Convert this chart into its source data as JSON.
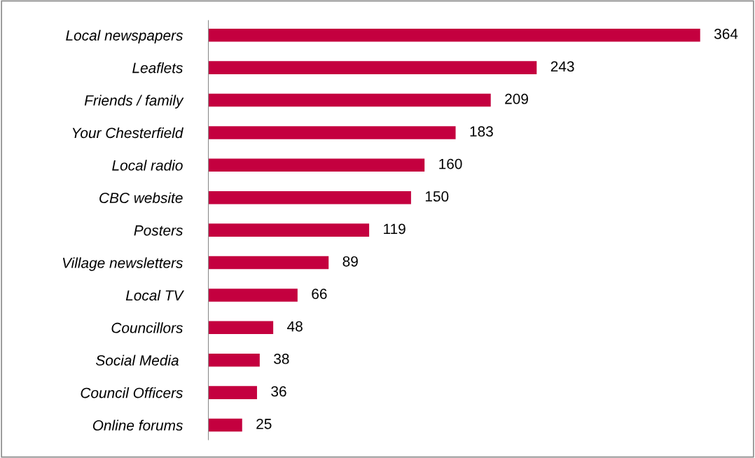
{
  "chart_data": {
    "type": "bar",
    "orientation": "horizontal",
    "categories": [
      "Local newspapers",
      "Leaflets",
      "Friends / family",
      "Your Chesterfield",
      "Local radio",
      "CBC website",
      "Posters",
      "Village newsletters",
      "Local TV",
      "Councillors",
      "Social Media ",
      "Council Officers",
      "Online forums"
    ],
    "values": [
      364,
      243,
      209,
      183,
      160,
      150,
      119,
      89,
      66,
      48,
      38,
      36,
      25
    ],
    "color": "#c4003f",
    "data_labels": true,
    "tick_labels": "y",
    "grid": false,
    "legend": false
  }
}
